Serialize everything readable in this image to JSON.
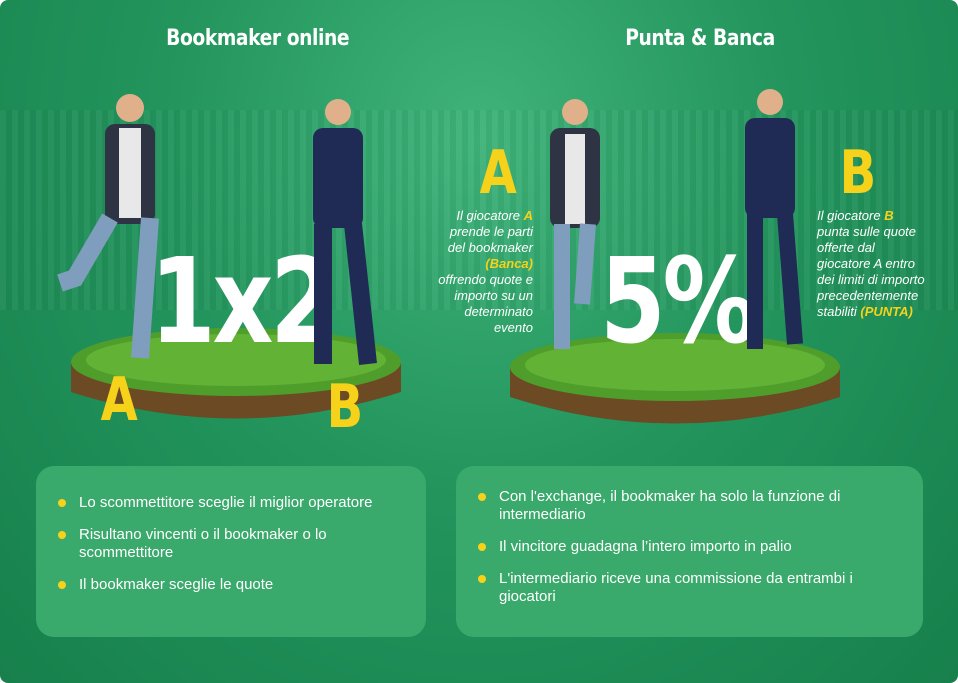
{
  "left": {
    "title": "Bookmaker online",
    "big_text": "1x2",
    "label_a": "A",
    "label_b": "B",
    "bullets": [
      "Lo scommettitore sceglie il miglior operatore",
      "Risultano vincenti o il bookmaker o lo scommettitore",
      "Il bookmaker sceglie le quote"
    ]
  },
  "right": {
    "title": "Punta & Banca",
    "big_text": "5%",
    "label_a": "A",
    "label_b": "B",
    "desc_a": {
      "pre": "Il giocatore ",
      "hl": "A",
      "mid": " prende le parti del bookmaker ",
      "hl2": "(Banca)",
      "post": " offrendo quote e importo su un determinato evento"
    },
    "desc_b": {
      "pre": "Il giocatore ",
      "hl": "B",
      "mid": " punta sulle quote offerte dal giocatore A entro dei limiti di importo precedentemente stabiliti ",
      "hl2": "(PUNTA)"
    },
    "bullets": [
      "Con l'exchange, il bookmaker ha solo la funzione di intermediario",
      "Il vincitore guadagna l’intero importo in palio",
      "L'intermediario riceve una commissione da entrambi i giocatori"
    ]
  },
  "colors": {
    "background": "#23955d",
    "accent": "#f6d21a",
    "box": "#3aa96c"
  }
}
